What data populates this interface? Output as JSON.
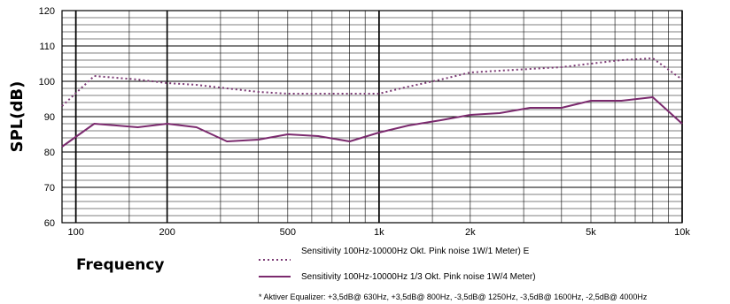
{
  "chart_data": {
    "type": "line",
    "ylabel": "SPL(dB)",
    "xlabel": "Frequency",
    "x_scale": "log",
    "xlim": [
      90,
      10000
    ],
    "ylim": [
      60,
      120
    ],
    "y_ticks": [
      60,
      70,
      80,
      90,
      100,
      110,
      120
    ],
    "x_ticks": [
      {
        "value": 100,
        "label": "100"
      },
      {
        "value": 200,
        "label": "200"
      },
      {
        "value": 500,
        "label": "500"
      },
      {
        "value": 1000,
        "label": "1k"
      },
      {
        "value": 2000,
        "label": "2k"
      },
      {
        "value": 5000,
        "label": "5k"
      },
      {
        "value": 10000,
        "label": "10k"
      }
    ],
    "grid": true,
    "series": [
      {
        "name": "Sensitivity 100Hz-10000Hz Okt. Pink noise 1W/1 Meter) E",
        "style": "dotted",
        "color": "#7b3a74",
        "x": [
          90,
          115,
          160,
          200,
          250,
          315,
          400,
          500,
          630,
          800,
          1000,
          1250,
          1600,
          2000,
          2500,
          3150,
          4000,
          5000,
          6300,
          8000,
          10000
        ],
        "y": [
          93,
          101.5,
          100.5,
          99.5,
          99,
          98,
          97,
          96.5,
          96.5,
          96.5,
          96.5,
          98.5,
          100.5,
          102.5,
          103,
          103.5,
          104,
          105,
          106,
          106.5,
          100.5
        ]
      },
      {
        "name": "Sensitivity 100Hz-10000Hz 1/3 Okt. Pink noise 1W/4 Meter)",
        "style": "solid",
        "color": "#7b2a6e",
        "x": [
          90,
          115,
          160,
          200,
          250,
          315,
          400,
          500,
          630,
          800,
          1000,
          1250,
          1600,
          2000,
          2500,
          3150,
          4000,
          5000,
          6300,
          8000,
          10000
        ],
        "y": [
          81.5,
          88,
          87,
          88,
          87,
          83,
          83.5,
          85,
          84.5,
          83,
          85.5,
          87.5,
          89,
          90.5,
          91,
          92.5,
          92.5,
          94.5,
          94.5,
          95.5,
          88
        ]
      }
    ],
    "legend_position": "bottom",
    "footnote": "* Aktiver Equalizer: +3,5dB@ 630Hz, +3,5dB@ 800Hz, -3,5dB@ 1250Hz, -3,5dB@ 1600Hz, -2,5dB@ 4000Hz"
  }
}
